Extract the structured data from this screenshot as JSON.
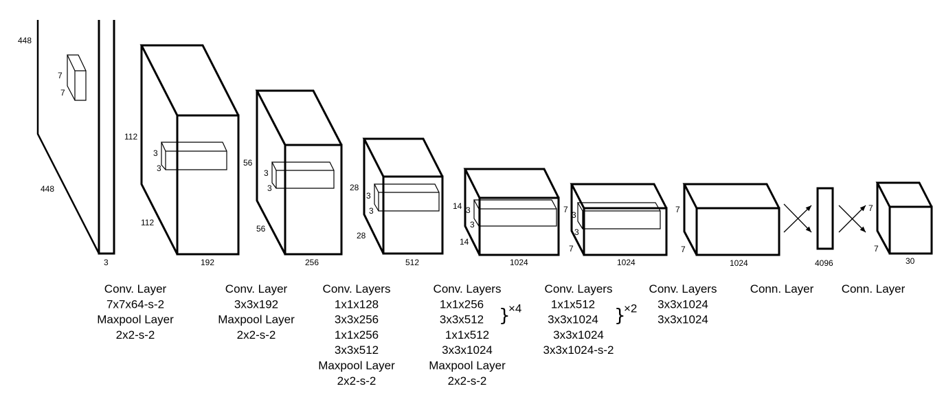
{
  "colors": {
    "stroke": "#000000",
    "background": "#ffffff"
  },
  "blocks": [
    {
      "name": "input",
      "dims": [
        "448",
        "448",
        "3"
      ],
      "kernel": [
        "7",
        "7"
      ]
    },
    {
      "name": "layer-2",
      "dims": [
        "112",
        "112",
        "192"
      ],
      "kernel": [
        "3",
        "3"
      ]
    },
    {
      "name": "layer-3",
      "dims": [
        "56",
        "56",
        "256"
      ],
      "kernel": [
        "3",
        "3"
      ]
    },
    {
      "name": "layer-4",
      "dims": [
        "28",
        "28",
        "512"
      ],
      "kernel": [
        "3",
        "3"
      ]
    },
    {
      "name": "layer-5",
      "dims": [
        "14",
        "14",
        "1024"
      ],
      "kernel": [
        "3",
        "3"
      ]
    },
    {
      "name": "layer-6",
      "dims": [
        "7",
        "7",
        "1024"
      ],
      "kernel": [
        "3",
        "3"
      ]
    },
    {
      "name": "layer-7",
      "dims": [
        "7",
        "7",
        "1024"
      ]
    },
    {
      "name": "fc",
      "dims": [
        "4096"
      ]
    },
    {
      "name": "output",
      "dims": [
        "7",
        "7",
        "30"
      ]
    }
  ],
  "captions": [
    {
      "lines": [
        "Conv. Layer",
        "7x7x64-s-2",
        "Maxpool Layer",
        "2x2-s-2"
      ]
    },
    {
      "lines": [
        "Conv. Layer",
        "3x3x192",
        "Maxpool Layer",
        "2x2-s-2"
      ]
    },
    {
      "lines": [
        "Conv. Layers",
        "1x1x128",
        "3x3x256",
        "1x1x256",
        "3x3x512",
        "Maxpool Layer",
        "2x2-s-2"
      ]
    },
    {
      "lines": [
        "Conv. Layers",
        "1x1x256",
        "3x3x512",
        "1x1x512",
        "3x3x1024",
        "Maxpool Layer",
        "2x2-s-2"
      ],
      "repeat": "×4"
    },
    {
      "lines": [
        "Conv. Layers",
        "1x1x512",
        "3x3x1024",
        "3x3x1024",
        "3x3x1024-s-2"
      ],
      "repeat": "×2"
    },
    {
      "lines": [
        "Conv. Layers",
        "3x3x1024",
        "3x3x1024"
      ]
    },
    {
      "lines": [
        "Conn. Layer"
      ]
    },
    {
      "lines": [
        "Conn. Layer"
      ]
    }
  ]
}
